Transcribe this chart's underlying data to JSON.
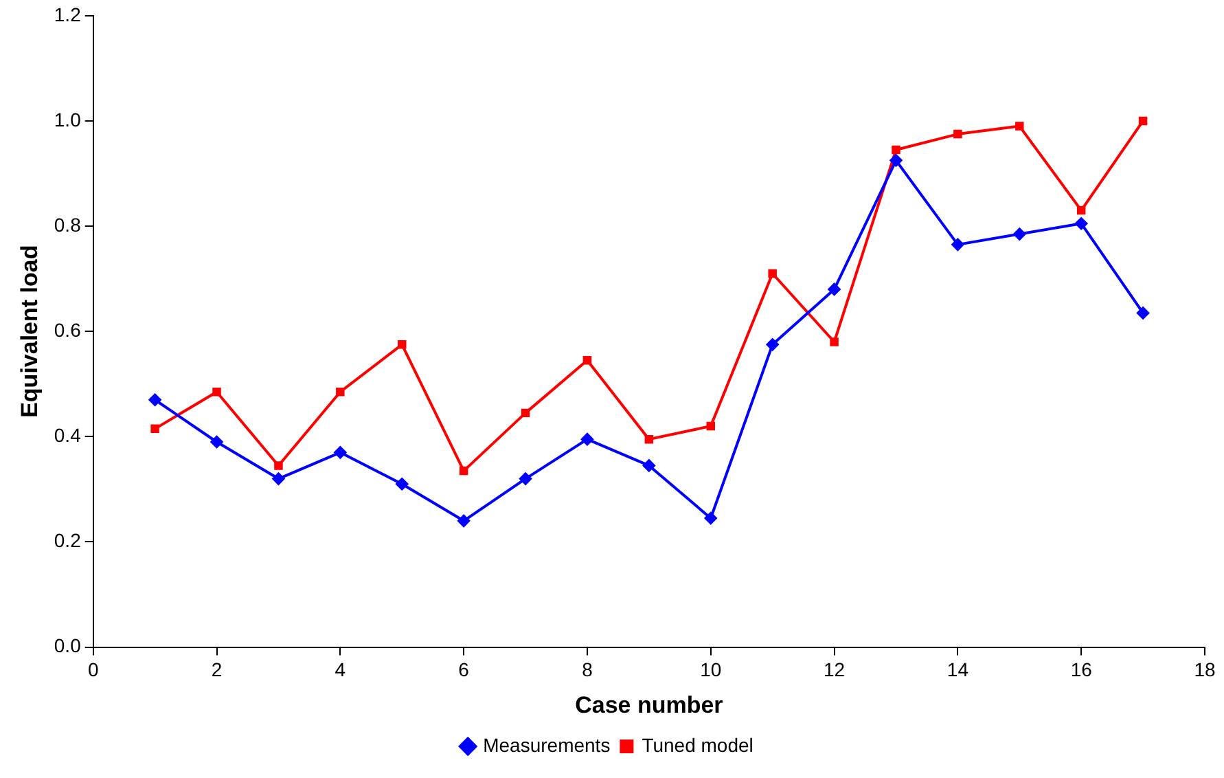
{
  "chart_data": {
    "type": "line",
    "xlabel": "Case number",
    "ylabel": "Equivalent load",
    "xlim": [
      0,
      18
    ],
    "xticks": [
      0,
      2,
      4,
      6,
      8,
      10,
      12,
      14,
      16,
      18
    ],
    "ylim": [
      0,
      1.2
    ],
    "yticks": [
      {
        "value": 0,
        "label": "0.0"
      },
      {
        "value": 0.2,
        "label": "0.2"
      },
      {
        "value": 0.4,
        "label": "0.4"
      },
      {
        "value": 0.6,
        "label": "0.6"
      },
      {
        "value": 0.8,
        "label": "0.8"
      },
      {
        "value": 1.0,
        "label": "1.0"
      },
      {
        "value": 1.2,
        "label": "1.2"
      }
    ],
    "x": [
      1,
      2,
      3,
      4,
      5,
      6,
      7,
      8,
      9,
      10,
      11,
      12,
      13,
      14,
      15,
      16,
      17
    ],
    "grid": false,
    "legend": "bottom",
    "line_style": "solid",
    "series": [
      {
        "name": "Measurements",
        "color": "#0000ff",
        "marker": "diamond",
        "values": [
          0.47,
          0.39,
          0.32,
          0.37,
          0.31,
          0.24,
          0.32,
          0.395,
          0.345,
          0.245,
          0.575,
          0.68,
          0.925,
          0.765,
          0.785,
          0.805,
          0.635
        ]
      },
      {
        "name": "Tuned model",
        "color": "#ff0000",
        "marker": "square",
        "values": [
          0.415,
          0.485,
          0.345,
          0.485,
          0.575,
          0.335,
          0.445,
          0.545,
          0.395,
          0.42,
          0.71,
          0.58,
          0.945,
          0.975,
          0.99,
          0.83,
          1.0
        ]
      }
    ]
  }
}
